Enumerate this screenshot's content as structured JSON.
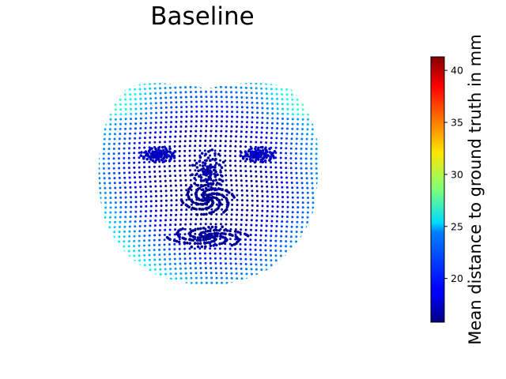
{
  "chart_data": {
    "type": "scatter",
    "title": "Baseline",
    "xlabel": "",
    "ylabel": "",
    "axes_visible": false,
    "grid": false,
    "legend": "none",
    "description_of_marks": "3D face point cloud viewed frontally; each point colored by error value",
    "colorbar": {
      "label": "Mean distance to ground truth in mm",
      "colormap": "jet",
      "range": [
        15.8,
        41.3
      ],
      "ticks": [
        20,
        25,
        30,
        35,
        40
      ],
      "placement": "right"
    },
    "value_summary": {
      "typical_min": 15.8,
      "center_region": 16.5,
      "outer_contour": 23.5,
      "lower_left_cheek_max": 27.5
    }
  }
}
